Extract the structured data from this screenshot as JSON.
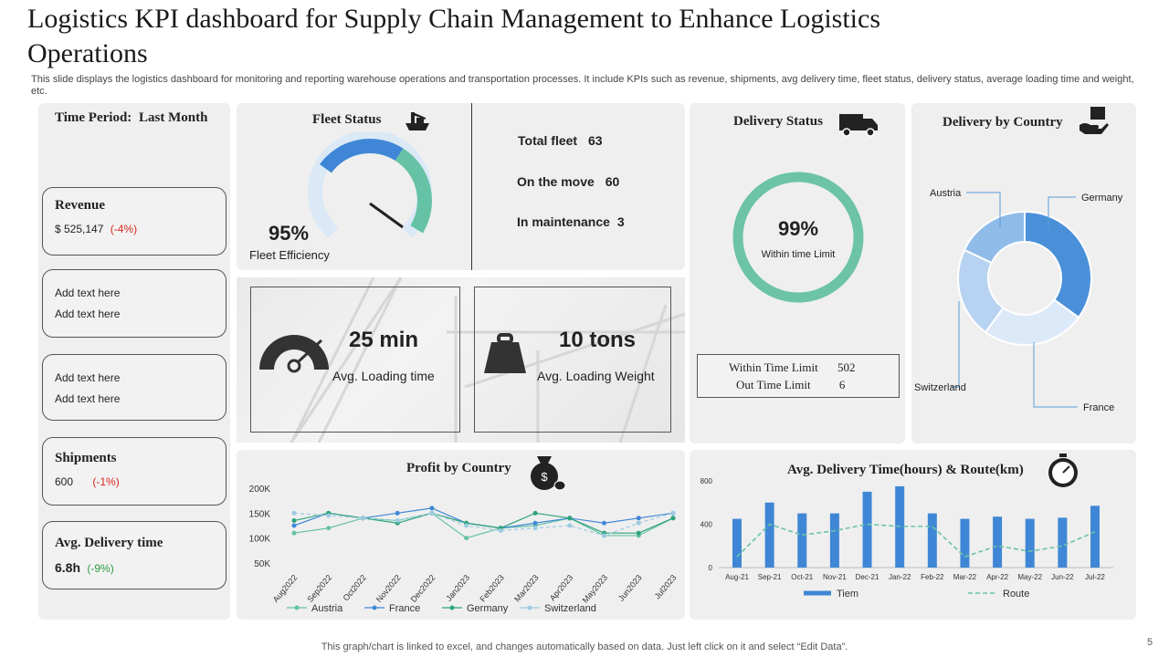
{
  "slide": {
    "title": "Logistics KPI dashboard for Supply Chain Management to Enhance Logistics Operations",
    "subtitle": "This slide displays the logistics dashboard for monitoring and reporting warehouse operations and transportation processes. It include KPIs such as revenue, shipments, avg delivery time, fleet status, delivery status, average loading time and weight, etc.",
    "footer": "This graph/chart is linked to excel,  and changes automatically based on data. Just left click on it and select “Edit Data”.",
    "page_number": "5"
  },
  "sidebar": {
    "time_period_label": "Time Period:",
    "time_period_value": "Last Month",
    "revenue": {
      "label": "Revenue",
      "value": "$ 525,147",
      "change": "(-4%)"
    },
    "placeholder1": {
      "line1": "Add text here",
      "line2": "Add text here"
    },
    "placeholder2": {
      "line1": "Add text here",
      "line2": "Add text here"
    },
    "shipments": {
      "label": "Shipments",
      "value": "600",
      "change": "(-1%)"
    },
    "avg_delivery": {
      "label": "Avg. Delivery time",
      "value": "6.8h",
      "change": "(-9%)"
    }
  },
  "fleet": {
    "title": "Fleet Status",
    "efficiency_value": "95%",
    "efficiency_label": "Fleet Efficiency",
    "efficiency_pct": 95,
    "total_label": "Total fleet",
    "total_value": "63",
    "move_label": "On the move",
    "move_value": "60",
    "maint_label": "In maintenance",
    "maint_value": "3",
    "colors": {
      "blue": "#3f87d6",
      "teal": "#66c2a5",
      "light": "#dbe9f7"
    }
  },
  "loading": {
    "time_value": "25 min",
    "time_label": "Avg. Loading time",
    "weight_value": "10 tons",
    "weight_label": "Avg. Loading Weight"
  },
  "delivery_status": {
    "title": "Delivery Status",
    "pct_value": "99%",
    "pct_label": "Within time Limit",
    "within_label": "Within Time Limit",
    "within_value": "502",
    "out_label": "Out Time Limit",
    "out_value": "6",
    "color": "#6cc3a6"
  },
  "icons": {
    "fleet": "ship-crane-icon",
    "delivery": "truck-icon",
    "country": "hand-package-icon",
    "profit": "money-bag-icon",
    "clock": "stopwatch-icon",
    "gauge": "speedometer-icon",
    "weight": "weight-icon"
  },
  "chart_data": [
    {
      "type": "pie",
      "title": "Delivery by Country",
      "variant": "donut",
      "categories": [
        "Germany",
        "France",
        "Switzerland",
        "Austria"
      ],
      "values": [
        35,
        25,
        22,
        18
      ],
      "colors": [
        "#4a90d9",
        "#dce9f8",
        "#b7d3f1",
        "#8fbbe8"
      ]
    },
    {
      "type": "line",
      "title": "Profit by Country",
      "categories": [
        "Aug2022",
        "Sep2022",
        "Oct2022",
        "Nov2022",
        "Dec2022",
        "Jan2023",
        "Feb2023",
        "Mar2023",
        "Apr2023",
        "May2023",
        "Jun2023",
        "Jul2023"
      ],
      "ylim": [
        50000,
        200000
      ],
      "yticks": [
        "50K",
        "100K",
        "150K",
        "200K"
      ],
      "ytick_values": [
        50000,
        100000,
        150000,
        200000
      ],
      "series": [
        {
          "name": "Austria",
          "color": "#66c2a5",
          "values": [
            110000,
            120000,
            140000,
            135000,
            150000,
            100000,
            120000,
            125000,
            140000,
            105000,
            105000,
            140000
          ]
        },
        {
          "name": "France",
          "color": "#3f87d6",
          "values": [
            125000,
            150000,
            140000,
            150000,
            160000,
            130000,
            120000,
            130000,
            140000,
            130000,
            140000,
            150000
          ]
        },
        {
          "name": "Germany",
          "color": "#2ea37a",
          "values": [
            135000,
            150000,
            140000,
            130000,
            150000,
            130000,
            120000,
            150000,
            140000,
            110000,
            110000,
            140000
          ]
        },
        {
          "name": "Switzerland",
          "color": "#9ecae1",
          "values": [
            150000,
            145000,
            140000,
            135000,
            150000,
            125000,
            115000,
            120000,
            125000,
            105000,
            130000,
            150000
          ]
        }
      ]
    },
    {
      "type": "bar",
      "title": "Avg. Delivery Time(hours)  & Route(km)",
      "categories": [
        "Aug-21",
        "Sep-21",
        "Oct-21",
        "Nov-21",
        "Dec-21",
        "Jan-22",
        "Feb-22",
        "Mar-22",
        "Apr-22",
        "May-22",
        "Jun-22",
        "Jul-22"
      ],
      "ylim": [
        0,
        800
      ],
      "yticks": [
        "0",
        "400",
        "800"
      ],
      "ytick_values": [
        0,
        400,
        800
      ],
      "series": [
        {
          "name": "Tiem",
          "kind": "bar",
          "color": "#3f87d6",
          "values": [
            450,
            600,
            500,
            500,
            700,
            750,
            500,
            450,
            470,
            450,
            460,
            570
          ]
        },
        {
          "name": "Route",
          "kind": "dashed-line",
          "color": "#6cc3a6",
          "values": [
            100,
            400,
            300,
            340,
            400,
            380,
            380,
            100,
            200,
            150,
            200,
            330
          ]
        }
      ]
    }
  ]
}
